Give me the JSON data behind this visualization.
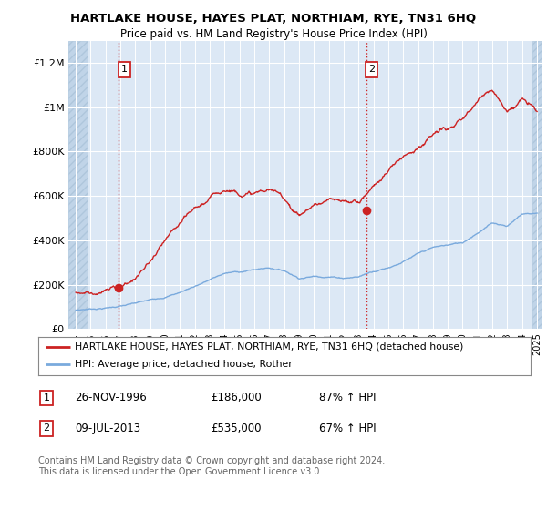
{
  "title": "HARTLAKE HOUSE, HAYES PLAT, NORTHIAM, RYE, TN31 6HQ",
  "subtitle": "Price paid vs. HM Land Registry's House Price Index (HPI)",
  "ylim": [
    0,
    1300000
  ],
  "yticks": [
    0,
    200000,
    400000,
    600000,
    800000,
    1000000,
    1200000
  ],
  "ytick_labels": [
    "£0",
    "£200K",
    "£400K",
    "£600K",
    "£800K",
    "£1M",
    "£1.2M"
  ],
  "x_start_year": 1994,
  "x_end_year": 2025,
  "hpi_color": "#7aaadd",
  "price_color": "#cc2222",
  "sale1_date": 1996.9,
  "sale1_price": 186000,
  "sale2_date": 2013.52,
  "sale2_price": 535000,
  "legend_label1": "HARTLAKE HOUSE, HAYES PLAT, NORTHIAM, RYE, TN31 6HQ (detached house)",
  "legend_label2": "HPI: Average price, detached house, Rother",
  "footer": "Contains HM Land Registry data © Crown copyright and database right 2024.\nThis data is licensed under the Open Government Licence v3.0.",
  "background_color": "#dce8f5",
  "hatch_color": "#c0d4e8",
  "grid_color": "#ffffff",
  "hpi_key_years": [
    1994,
    1995,
    1996,
    1997,
    1998,
    1999,
    2000,
    2001,
    2002,
    2003,
    2004,
    2005,
    2006,
    2007,
    2008,
    2009,
    2010,
    2011,
    2012,
    2013,
    2014,
    2015,
    2016,
    2017,
    2018,
    2019,
    2020,
    2021,
    2022,
    2023,
    2024,
    2025
  ],
  "hpi_key_vals": [
    85000,
    92000,
    98000,
    108000,
    118000,
    130000,
    148000,
    170000,
    200000,
    230000,
    258000,
    265000,
    275000,
    285000,
    275000,
    245000,
    255000,
    258000,
    255000,
    262000,
    290000,
    310000,
    340000,
    370000,
    395000,
    405000,
    415000,
    465000,
    510000,
    500000,
    555000,
    560000
  ],
  "price_key_years": [
    1994,
    1995,
    1996,
    1997,
    1998,
    1999,
    2000,
    2001,
    2002,
    2003,
    2004,
    2005,
    2006,
    2007,
    2008,
    2009,
    2010,
    2011,
    2012,
    2013,
    2014,
    2015,
    2016,
    2017,
    2018,
    2019,
    2020,
    2021,
    2022,
    2023,
    2024,
    2025
  ],
  "price_key_vals": [
    165000,
    172000,
    180000,
    195000,
    240000,
    310000,
    390000,
    450000,
    500000,
    540000,
    590000,
    590000,
    590000,
    600000,
    560000,
    490000,
    540000,
    555000,
    530000,
    535000,
    610000,
    680000,
    750000,
    810000,
    860000,
    880000,
    900000,
    980000,
    1050000,
    960000,
    1020000,
    960000
  ]
}
